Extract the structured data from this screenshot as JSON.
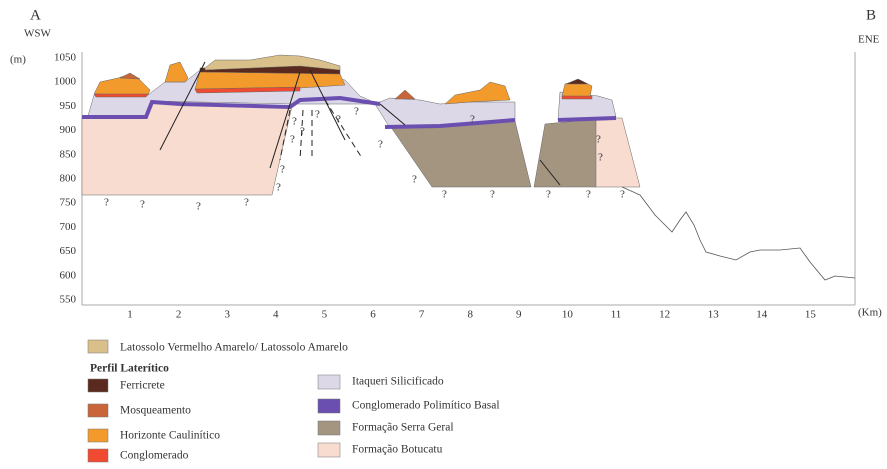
{
  "header": {
    "left_letter": "A",
    "left_direction": "WSW",
    "right_letter": "B",
    "right_direction": "ENE"
  },
  "axes": {
    "y_unit": "(m)",
    "x_unit": "(Km)",
    "y_ticks": [
      1050,
      1000,
      950,
      900,
      850,
      800,
      750,
      700,
      650,
      600,
      550
    ],
    "x_ticks": [
      1,
      2,
      3,
      4,
      5,
      6,
      7,
      8,
      9,
      10,
      11,
      12,
      13,
      14,
      15
    ]
  },
  "question_marks": [
    "?",
    "?",
    "?",
    "?",
    "?",
    "?",
    "?",
    "?",
    "?",
    "?",
    "?",
    "?",
    "?",
    "?",
    "?",
    "?",
    "?",
    "?",
    "?",
    "?",
    "?",
    "?"
  ],
  "legend": {
    "soil": "Latossolo Vermelho Amarelo/ Latossolo Amarelo",
    "profile_title": "Perfil Laterítico",
    "left_items": [
      "Ferricrete",
      "Mosqueamento",
      "Horizonte Caulinítico",
      "Conglomerado"
    ],
    "right_items": [
      "Itaqueri Silicificado",
      "Conglomerado Polimítico Basal",
      "Formação Serra Geral",
      "Formação Botucatu"
    ]
  }
}
